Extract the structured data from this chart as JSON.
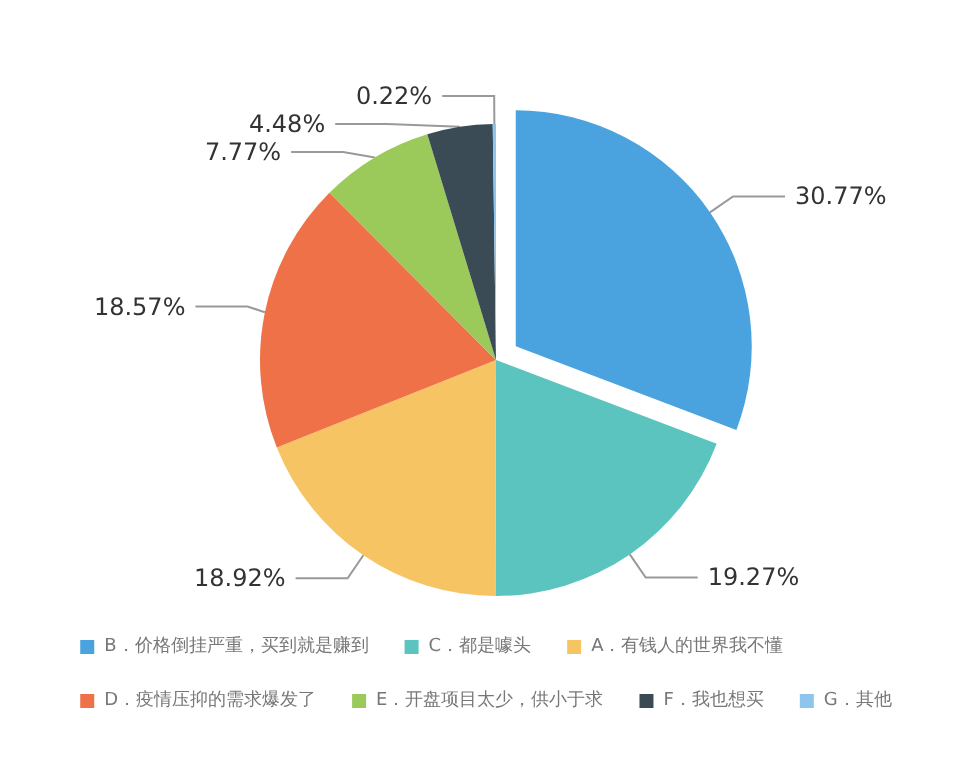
{
  "chart_data": {
    "type": "pie",
    "categories": [
      "B．价格倒挂严重，买到就是赚到",
      "C．都是噱头",
      "A．有钱人的世界我不懂",
      "D．疫情压抑的需求爆发了",
      "E．开盘项目太少，供小于求",
      "F．我也想买",
      "G．其他"
    ],
    "values": [
      30.77,
      19.27,
      18.92,
      18.57,
      7.77,
      4.48,
      0.22
    ],
    "colors": [
      "#4aa3df",
      "#5bc4be",
      "#f6c462",
      "#ee7148",
      "#9bc95a",
      "#3b4b55",
      "#8ec5ef"
    ],
    "value_labels": [
      "30.77%",
      "19.27%",
      "18.92%",
      "18.57%",
      "7.77%",
      "4.48%",
      "0.22%"
    ],
    "legend": "bottom"
  }
}
